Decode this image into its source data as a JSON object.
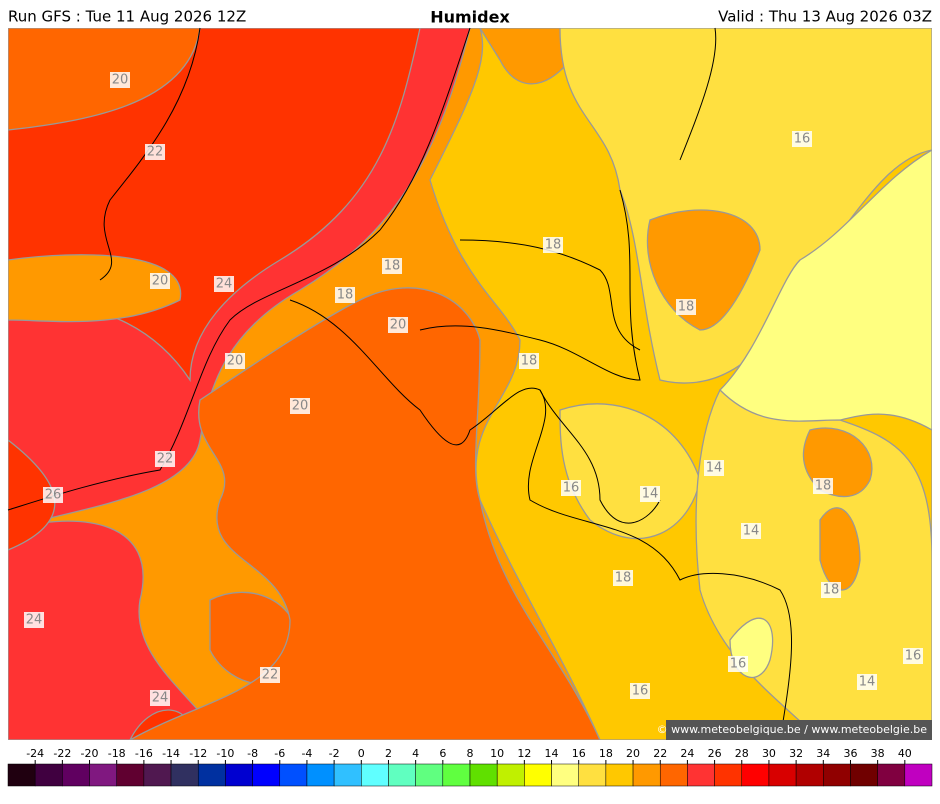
{
  "header": {
    "run": "Run GFS : Tue 11 Aug 2026 12Z",
    "title": "Humidex",
    "valid": "Valid : Thu 13 Aug 2026 03Z"
  },
  "contour_labels": [
    "20",
    "22",
    "20",
    "24",
    "20",
    "20",
    "22",
    "26",
    "24",
    "22",
    "24",
    "18",
    "18",
    "20",
    "18",
    "18",
    "18",
    "16",
    "14",
    "18",
    "14",
    "16",
    "14",
    "18",
    "18",
    "16",
    "16",
    "16",
    "14"
  ],
  "copyright": "© www.meteobelgique.be / www.meteobelgie.be",
  "colorbar": {
    "ticks": [
      -24,
      -22,
      -20,
      -18,
      -16,
      -14,
      -12,
      -10,
      -8,
      -6,
      -4,
      -2,
      0,
      2,
      4,
      6,
      8,
      10,
      12,
      14,
      16,
      18,
      20,
      22,
      24,
      26,
      28,
      30,
      32,
      34,
      36,
      38,
      40
    ],
    "colors": [
      "#200010",
      "#400040",
      "#600060",
      "#801880",
      "#600030",
      "#501850",
      "#303060",
      "#0030a0",
      "#0000d0",
      "#0000ff",
      "#0050ff",
      "#0090ff",
      "#30c0ff",
      "#60ffff",
      "#60ffc0",
      "#60ff80",
      "#60ff40",
      "#60e000",
      "#c0f000",
      "#ffff00",
      "#ffff80",
      "#ffe040",
      "#ffc800",
      "#ff9900",
      "#ff6600",
      "#ff3333",
      "#ff3300",
      "#ff0000",
      "#d80000",
      "#b00000",
      "#900000",
      "#700000",
      "#800040",
      "#c000c0"
    ]
  }
}
